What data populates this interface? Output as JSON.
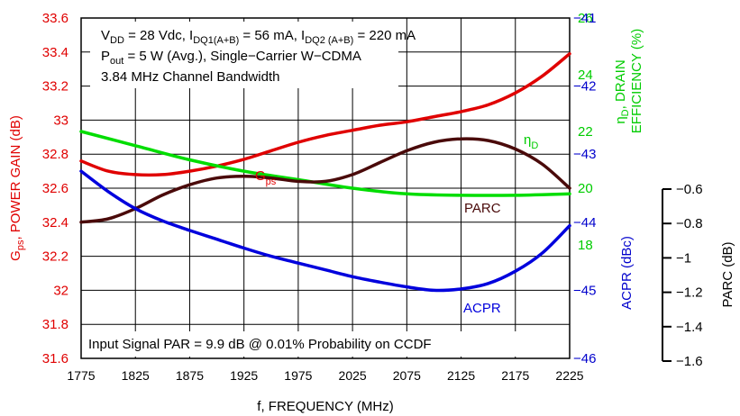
{
  "chart_data": {
    "type": "line",
    "xlabel": "f, FREQUENCY (MHz)",
    "x_ticks": [
      "1775",
      "1825",
      "1875",
      "1925",
      "1975",
      "2025",
      "2075",
      "2125",
      "2175",
      "2225"
    ],
    "xlim": [
      1775,
      2225
    ],
    "grid": true,
    "axes": {
      "gain": {
        "label_main": "G",
        "label_sub": "ps",
        "label_rest": ", POWER GAIN (dB)",
        "ylim": [
          31.6,
          33.6
        ],
        "ticks": [
          "31.6",
          "31.8",
          "32",
          "32.2",
          "32.4",
          "32.6",
          "32.8",
          "33",
          "33.2",
          "33.4",
          "33.6"
        ],
        "color": "#e00000"
      },
      "efficiency": {
        "label_line1_sym": "η",
        "label_line1_sub": "D",
        "label_line1_rest": ", DRAIN",
        "label_line2": "EFFICIENCY (%)",
        "ylim": [
          14,
          26
        ],
        "ticks": [
          "18",
          "20",
          "22",
          "24",
          "26"
        ],
        "color": "#00cc00"
      },
      "acpr": {
        "label": "ACPR (dBc)",
        "ylim": [
          -46,
          -41
        ],
        "ticks": [
          "−41",
          "−42",
          "−43",
          "−44",
          "−45",
          "−46"
        ],
        "color": "#0000cc"
      },
      "parc": {
        "label": "PARC (dB)",
        "ylim": [
          -1.6,
          -0.6
        ],
        "ticks": [
          "−0.6",
          "−0.8",
          "−1",
          "−1.2",
          "−1.4",
          "−1.6"
        ],
        "color": "#000000"
      }
    },
    "series": [
      {
        "name_main": "G",
        "name_sub": "ps",
        "axis": "gain",
        "color": "#e00000",
        "x": [
          1775,
          1800,
          1825,
          1850,
          1875,
          1900,
          1925,
          1950,
          1975,
          2000,
          2025,
          2050,
          2075,
          2100,
          2125,
          2150,
          2175,
          2200,
          2225
        ],
        "y": [
          32.76,
          32.7,
          32.68,
          32.68,
          32.7,
          32.73,
          32.77,
          32.82,
          32.87,
          32.91,
          32.94,
          32.97,
          32.99,
          33.02,
          33.05,
          33.09,
          33.16,
          33.26,
          33.39
        ]
      },
      {
        "name_main": "η",
        "name_sub": "D",
        "axis": "efficiency",
        "color": "#00dd00",
        "x": [
          1775,
          1825,
          1875,
          1925,
          1975,
          2025,
          2075,
          2125,
          2175,
          2225
        ],
        "y": [
          22.0,
          21.5,
          21.0,
          20.6,
          20.3,
          20.0,
          19.8,
          19.75,
          19.75,
          19.8
        ]
      },
      {
        "name": "PARC",
        "axis": "parc",
        "color": "#4a0a0a",
        "x": [
          1775,
          1800,
          1825,
          1850,
          1875,
          1900,
          1925,
          1950,
          1975,
          2000,
          2025,
          2050,
          2075,
          2100,
          2125,
          2150,
          2175,
          2200,
          2225
        ],
        "y": [
          -1.2,
          -1.19,
          -1.16,
          -1.12,
          -1.09,
          -1.07,
          -1.065,
          -1.07,
          -1.08,
          -1.08,
          -1.06,
          -1.025,
          -0.99,
          -0.965,
          -0.955,
          -0.96,
          -0.985,
          -1.03,
          -1.1
        ]
      },
      {
        "name": "ACPR",
        "axis": "acpr",
        "color": "#0000dd",
        "x": [
          1775,
          1800,
          1825,
          1850,
          1875,
          1900,
          1925,
          1950,
          1975,
          2000,
          2025,
          2050,
          2075,
          2100,
          2125,
          2150,
          2175,
          2200,
          2225
        ],
        "y": [
          -43.25,
          -43.55,
          -43.8,
          -43.98,
          -44.12,
          -44.25,
          -44.38,
          -44.5,
          -44.6,
          -44.7,
          -44.8,
          -44.88,
          -44.95,
          -45.0,
          -44.98,
          -44.9,
          -44.72,
          -44.45,
          -44.05
        ]
      }
    ],
    "annotations": {
      "cond_line1": {
        "parts": [
          {
            "t": "V"
          },
          {
            "t": "DD",
            "sub": true
          },
          {
            "t": " = 28 Vdc, I"
          },
          {
            "t": "DQ1(A+B)",
            "sub": true
          },
          {
            "t": " = 56 mA, I"
          },
          {
            "t": "DQ2 (A+B)",
            "sub": true
          },
          {
            "t": " = 220 mA"
          }
        ]
      },
      "cond_line2": {
        "parts": [
          {
            "t": "P"
          },
          {
            "t": "out",
            "sub": true
          },
          {
            "t": " = 5 W (Avg.), Single−Carrier W−CDMA"
          }
        ]
      },
      "cond_line3": "3.84 MHz Channel Bandwidth",
      "bottom_note": "Input Signal PAR = 9.9 dB @ 0.01% Probability on CCDF"
    }
  }
}
